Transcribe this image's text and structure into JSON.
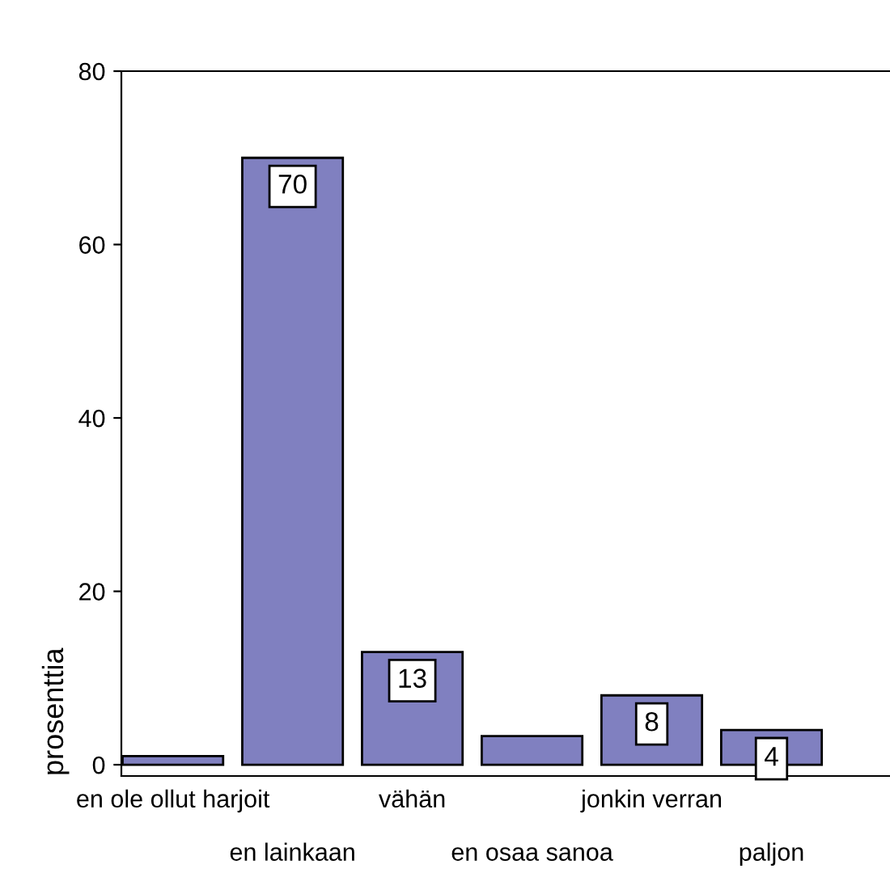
{
  "chart_data": {
    "type": "bar",
    "ylabel": "prosenttia",
    "categories": [
      "en ole ollut harjoit",
      "en lainkaan",
      "vähän",
      "en osaa sanoa",
      "jonkin verran",
      "paljon"
    ],
    "values": [
      1,
      70,
      13,
      3.3,
      8,
      4
    ],
    "value_labels": [
      null,
      "70",
      "13",
      null,
      "8",
      "4"
    ],
    "color": "#8080c0",
    "ylim": [
      -1.3,
      80
    ],
    "yticks": [
      0,
      20,
      40,
      60,
      80
    ],
    "grid": false,
    "legend": false
  }
}
